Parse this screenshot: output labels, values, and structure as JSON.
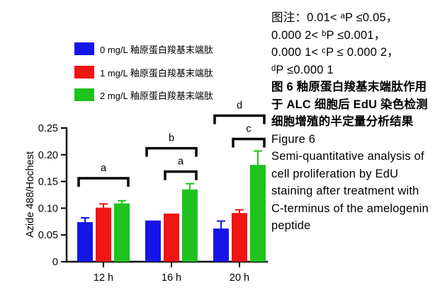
{
  "chart_data": {
    "type": "bar",
    "categories": [
      "12 h",
      "16 h",
      "20 h"
    ],
    "series": [
      {
        "name": "0 mg/L  釉原蛋白羧基末端肽",
        "values": [
          0.074,
          0.077,
          0.062
        ],
        "errors": [
          0.008,
          0.0,
          0.014
        ],
        "color": "#1515e8"
      },
      {
        "name": "1 mg/L  釉原蛋白羧基末端肽",
        "values": [
          0.101,
          0.09,
          0.091
        ],
        "errors": [
          0.007,
          0.0,
          0.006
        ],
        "color": "#f01414"
      },
      {
        "name": "2 mg/L  釉原蛋白羧基末端肽",
        "values": [
          0.109,
          0.135,
          0.181
        ],
        "errors": [
          0.005,
          0.011,
          0.026
        ],
        "color": "#1ec31e"
      }
    ],
    "title": "",
    "xlabel": "",
    "ylabel": "Azide 488/Hochest",
    "ylim": [
      0,
      0.25
    ],
    "yticks": [
      "0",
      "0.05",
      "0.10",
      "0.15",
      "0.20",
      "0.25"
    ],
    "grid": false,
    "legend_position": "top-left",
    "annotations": [
      {
        "label": "a",
        "category": "12 h",
        "from_series": 0,
        "to_series": 2
      },
      {
        "label": "b",
        "category": "16 h",
        "from_series": 0,
        "to_series": 2
      },
      {
        "label": "a",
        "category": "16 h",
        "from_series": 1,
        "to_series": 2
      },
      {
        "label": "d",
        "category": "20 h",
        "from_series": 0,
        "to_series": 2
      },
      {
        "label": "c",
        "category": "20 h",
        "from_series": 1,
        "to_series": 2
      }
    ]
  },
  "note": {
    "line1": "图注：0.01< ᵃP ≤0.05，",
    "line2": "0.000  2< ᵇP ≤0.001，",
    "line3": "0.000 1< ᶜP ≤ 0.000 2，",
    "line4": "ᵈP ≤0.000 1",
    "caption_cn": "图  6   釉原蛋白羧基末端肽作用于 ALC 细胞后 EdU 染色检测细胞增殖的半定量分析结果",
    "caption_fig": "Figure 6",
    "caption_en": "Semi-quantitative analysis of cell proliferation by EdU staining after treatment with C-terminus of the amelogenin peptide"
  }
}
